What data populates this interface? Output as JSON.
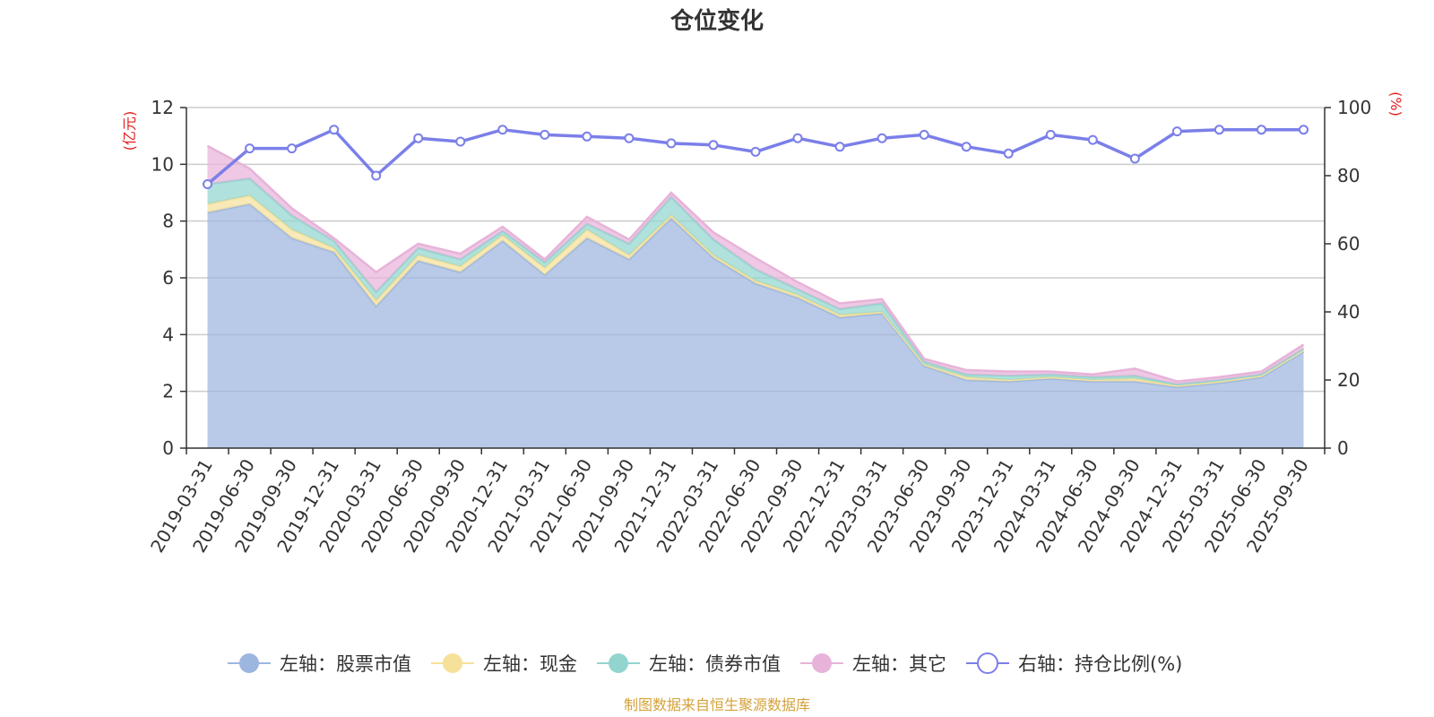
{
  "chart_data": {
    "type": "area",
    "title": "仓位变化",
    "left_axis_label": "(亿元)",
    "right_axis_label": "(%)",
    "left_ylim": [
      0,
      12
    ],
    "left_ticks": [
      0,
      2,
      4,
      6,
      8,
      10,
      12
    ],
    "right_ylim": [
      0,
      100
    ],
    "right_ticks": [
      0,
      20,
      40,
      60,
      80,
      100
    ],
    "categories": [
      "2019-03-31",
      "2019-06-30",
      "2019-09-30",
      "2019-12-31",
      "2020-03-31",
      "2020-06-30",
      "2020-09-30",
      "2020-12-31",
      "2021-03-31",
      "2021-06-30",
      "2021-09-30",
      "2021-12-31",
      "2022-03-31",
      "2022-06-30",
      "2022-09-30",
      "2022-12-31",
      "2023-03-31",
      "2023-06-30",
      "2023-09-30",
      "2023-12-31",
      "2024-03-31",
      "2024-06-30",
      "2024-09-30",
      "2024-12-31",
      "2025-03-31",
      "2025-06-30",
      "2025-09-30"
    ],
    "stacked_series": [
      {
        "name": "左轴：股票市值",
        "color": "#9db6df",
        "values": [
          8.3,
          8.6,
          7.4,
          6.9,
          5.0,
          6.6,
          6.2,
          7.3,
          6.1,
          7.4,
          6.65,
          8.1,
          6.7,
          5.8,
          5.3,
          4.6,
          4.75,
          2.9,
          2.4,
          2.35,
          2.45,
          2.35,
          2.35,
          2.15,
          2.3,
          2.5,
          3.4
        ]
      },
      {
        "name": "左轴：现金",
        "color": "#f5e19a",
        "values": [
          0.3,
          0.3,
          0.3,
          0.15,
          0.2,
          0.2,
          0.2,
          0.2,
          0.25,
          0.3,
          0.15,
          0.1,
          0.1,
          0.1,
          0.1,
          0.1,
          0.05,
          0.05,
          0.1,
          0.05,
          0.05,
          0.05,
          0.1,
          0.05,
          0.05,
          0.05,
          0.05
        ]
      },
      {
        "name": "左轴：债券市值",
        "color": "#92d5cf",
        "values": [
          0.7,
          0.6,
          0.5,
          0.25,
          0.3,
          0.25,
          0.25,
          0.15,
          0.2,
          0.2,
          0.4,
          0.65,
          0.55,
          0.4,
          0.2,
          0.2,
          0.3,
          0.1,
          0.1,
          0.15,
          0.1,
          0.1,
          0.1,
          0.05,
          0.05,
          0.05,
          0.05
        ]
      },
      {
        "name": "左轴：其它",
        "color": "#e7b3d9",
        "values": [
          1.35,
          0.35,
          0.25,
          0.1,
          0.7,
          0.15,
          0.2,
          0.15,
          0.1,
          0.25,
          0.15,
          0.15,
          0.25,
          0.4,
          0.25,
          0.2,
          0.15,
          0.1,
          0.15,
          0.15,
          0.1,
          0.1,
          0.25,
          0.1,
          0.1,
          0.1,
          0.15
        ]
      }
    ],
    "line_series": {
      "name": "右轴：持仓比例(%)",
      "color": "#7b7fe9",
      "values": [
        77.5,
        88,
        88,
        93.5,
        80,
        91,
        90,
        93.5,
        92,
        91.5,
        91,
        89.5,
        89,
        87,
        91,
        88.5,
        91,
        92,
        88.5,
        86.5,
        92,
        90.5,
        85,
        93,
        93.5,
        93.5,
        93.5
      ]
    },
    "legend": [
      "左轴：股票市值",
      "左轴：现金",
      "左轴：债券市值",
      "左轴：其它",
      "右轴：持仓比例(%)"
    ],
    "legend_position": "bottom",
    "grid": true
  },
  "source": "制图数据来自恒生聚源数据库",
  "colors": {
    "axis_label": "#e02020",
    "source": "#d4a23a",
    "grid": "#cccccc",
    "axis": "#333333"
  }
}
